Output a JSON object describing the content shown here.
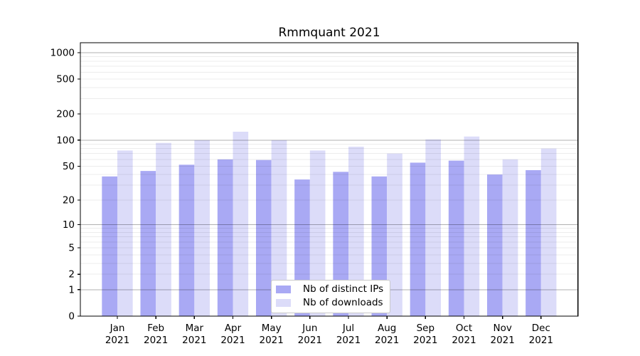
{
  "chart_data": {
    "type": "bar",
    "title": "Rmmquant 2021",
    "categories": [
      "Jan 2021",
      "Feb 2021",
      "Mar 2021",
      "Apr 2021",
      "May 2021",
      "Jun 2021",
      "Jul 2021",
      "Aug 2021",
      "Sep 2021",
      "Oct 2021",
      "Nov 2021",
      "Dec 2021"
    ],
    "series": [
      {
        "name": "Nb of distinct IPs",
        "color": "#a9a9f4",
        "values": [
          38,
          44,
          52,
          60,
          59,
          35,
          43,
          38,
          55,
          58,
          40,
          45
        ]
      },
      {
        "name": "Nb of downloads",
        "color": "#dcdcf9",
        "values": [
          76,
          93,
          100,
          125,
          100,
          76,
          84,
          70,
          102,
          110,
          60,
          80
        ]
      }
    ],
    "yticks": [
      0,
      1,
      2,
      5,
      10,
      20,
      50,
      100,
      200,
      500,
      1000
    ],
    "yscale": "log10(1+v)",
    "ylim": [
      0,
      1250
    ],
    "xlabel": "",
    "ylabel": "",
    "grid": true,
    "legend_position": "lower-center"
  },
  "colors": {
    "background": "#ffffff",
    "axis": "#000000",
    "grid_major": "rgba(0,0,0,0.30)",
    "grid_minor": "rgba(0,0,0,0.075)"
  }
}
